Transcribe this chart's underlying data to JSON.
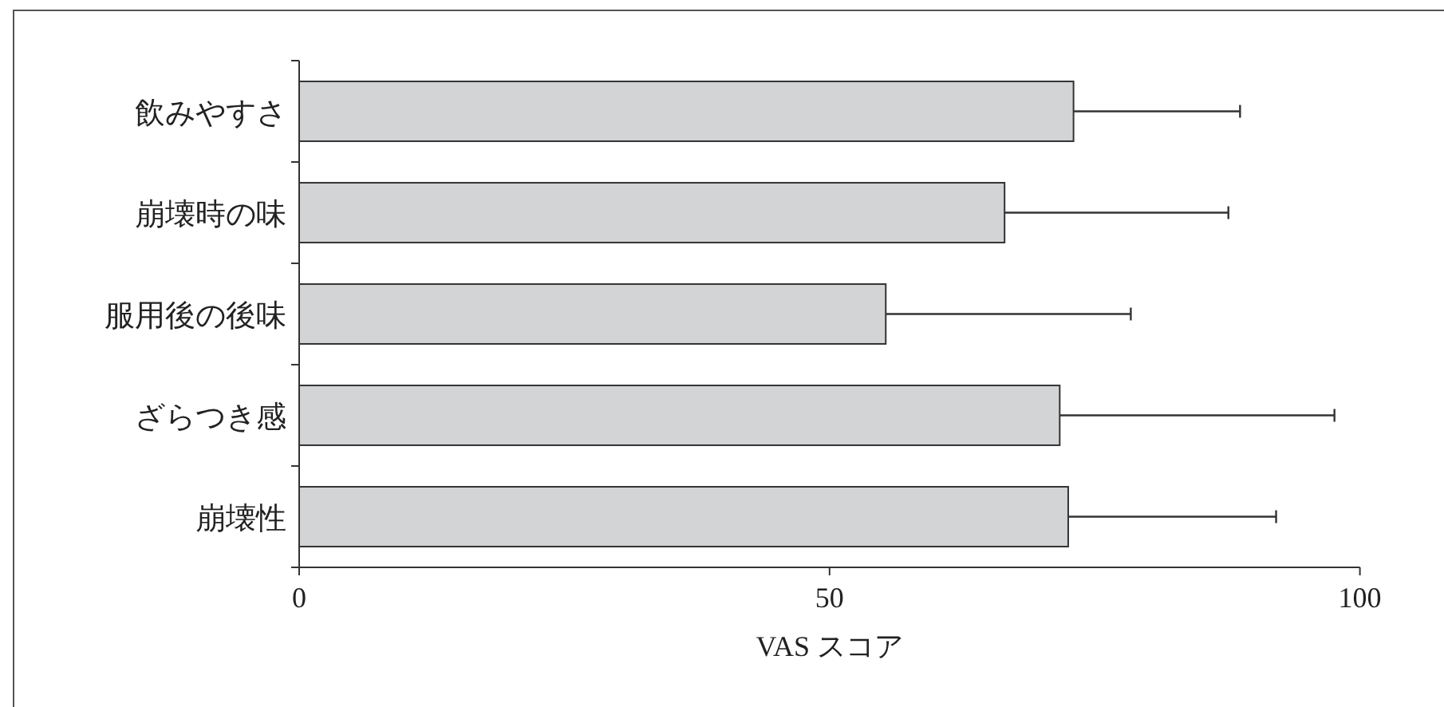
{
  "chart_data": {
    "type": "bar",
    "orientation": "horizontal",
    "xlabel": "VAS スコア",
    "categories": [
      "飲みやすさ",
      "崩壊時の味",
      "服用後の後味",
      "ざらつき感",
      "崩壊性"
    ],
    "values": [
      73,
      66.5,
      55.3,
      71.7,
      72.5
    ],
    "errors": [
      15.7,
      21.1,
      23.1,
      25.9,
      19.6
    ],
    "color": "#d3d4d6",
    "xlim": [
      0,
      100
    ],
    "xticks": [
      0,
      50,
      100
    ]
  }
}
